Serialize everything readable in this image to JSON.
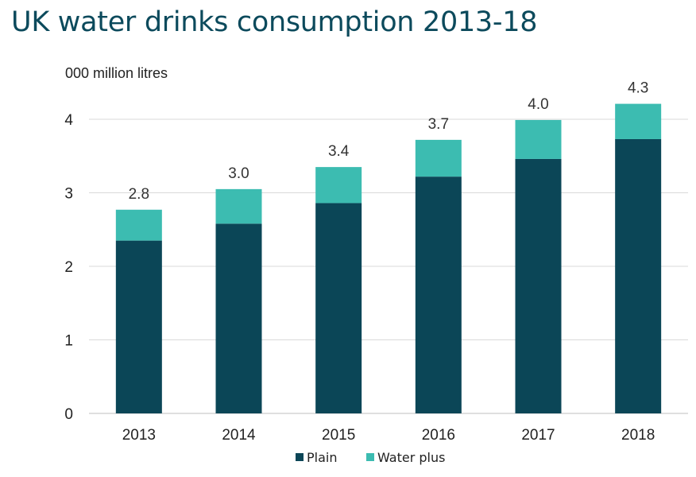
{
  "title": "UK water drinks consumption 2013-18",
  "chart_data": {
    "type": "bar",
    "stacked": true,
    "title": "UK water drinks consumption 2013-18",
    "unit_label": "000 million litres",
    "categories": [
      "2013",
      "2014",
      "2015",
      "2016",
      "2017",
      "2018"
    ],
    "series": [
      {
        "name": "Plain",
        "color": "#0b4657",
        "values": [
          2.35,
          2.58,
          2.86,
          3.22,
          3.46,
          3.73
        ]
      },
      {
        "name": "Water plus",
        "color": "#3cbcb1",
        "values": [
          0.42,
          0.47,
          0.49,
          0.5,
          0.53,
          0.48
        ]
      }
    ],
    "totals": [
      "2.8",
      "3.0",
      "3.4",
      "3.7",
      "4.0",
      "4.3"
    ],
    "ylim": [
      0,
      4
    ],
    "yticks": [
      0,
      1,
      2,
      3,
      4
    ],
    "grid": true,
    "gridline_color": "#d9d9d9",
    "legend_position": "bottom"
  }
}
